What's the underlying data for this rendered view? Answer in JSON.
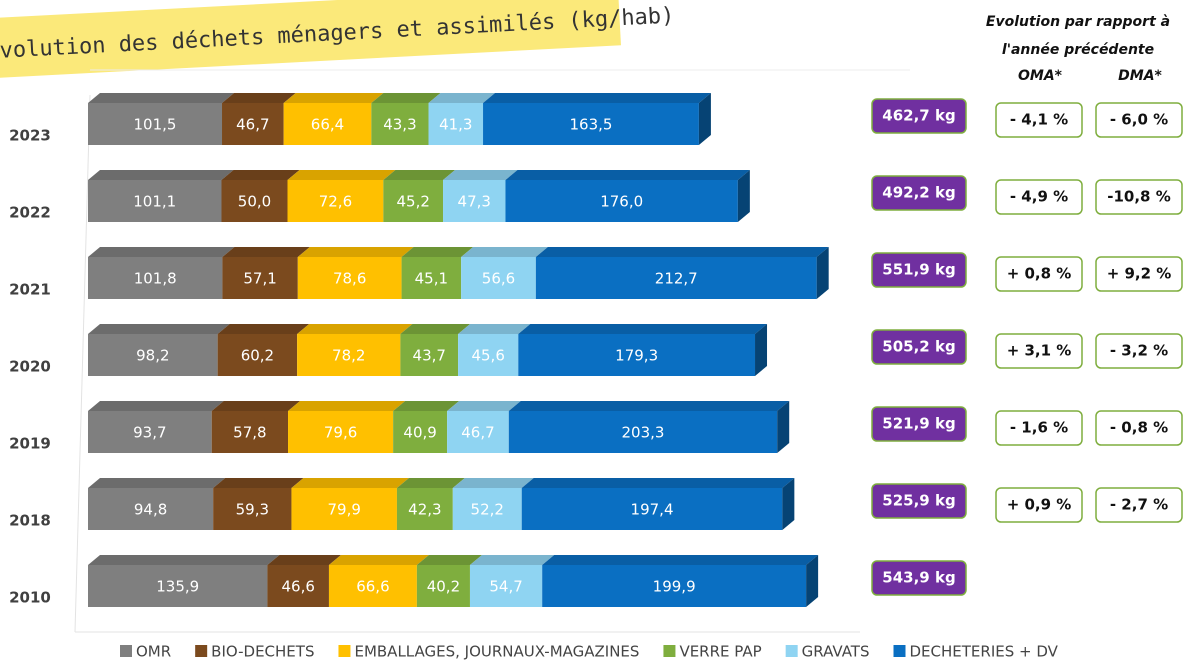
{
  "chart_data": {
    "type": "stacked-bar-3d",
    "title": "Evolution des déchets ménagers et assimilés (kg/hab)",
    "categories": [
      "2023",
      "2022",
      "2021",
      "2020",
      "2019",
      "2018",
      "2010"
    ],
    "xlim": [
      0,
      640
    ],
    "series": [
      {
        "name": "OMR",
        "color": "#7f7f7f",
        "values": [
          101.5,
          101.1,
          101.8,
          98.2,
          93.7,
          94.8,
          135.9
        ],
        "value_labels": [
          "101,5",
          "101,1",
          "101,8",
          "98,2",
          "93,7",
          "94,8",
          "135,9"
        ]
      },
      {
        "name": "BIO-DECHETS",
        "color": "#7b4a1e",
        "values": [
          46.7,
          50.0,
          57.1,
          60.2,
          57.8,
          59.3,
          46.6
        ],
        "value_labels": [
          "46,7",
          "50,0",
          "57,1",
          "60,2",
          "57,8",
          "59,3",
          "46,6"
        ]
      },
      {
        "name": "EMBALLAGES, JOURNAUX-MAGAZINES",
        "color": "#ffc000",
        "values": [
          66.4,
          72.6,
          78.6,
          78.2,
          79.6,
          79.9,
          66.6
        ],
        "value_labels": [
          "66,4",
          "72,6",
          "78,6",
          "78,2",
          "79,6",
          "79,9",
          "66,6"
        ]
      },
      {
        "name": "VERRE PAP",
        "color": "#7fae3e",
        "values": [
          43.3,
          45.2,
          45.1,
          43.7,
          40.9,
          42.3,
          40.2
        ],
        "value_labels": [
          "43,3",
          "45,2",
          "45,1",
          "43,7",
          "40,9",
          "42,3",
          "40,2"
        ]
      },
      {
        "name": "GRAVATS",
        "color": "#8fd4f2",
        "values": [
          41.3,
          47.3,
          56.6,
          45.6,
          46.7,
          52.2,
          54.7
        ],
        "value_labels": [
          "41,3",
          "47,3",
          "56,6",
          "45,6",
          "46,7",
          "52,2",
          "54,7"
        ]
      },
      {
        "name": "DECHETERIES + DV",
        "color": "#0a6fc2",
        "values": [
          163.5,
          176.0,
          212.7,
          179.3,
          203.3,
          197.4,
          199.9
        ],
        "value_labels": [
          "163,5",
          "176,0",
          "212,7",
          "179,3",
          "203,3",
          "197,4",
          "199,9"
        ]
      }
    ],
    "totals": [
      462.7,
      492.2,
      551.9,
      505.2,
      521.9,
      525.9,
      543.9
    ],
    "total_labels": [
      "462,7 kg",
      "492,2 kg",
      "551,9 kg",
      "505,2 kg",
      "521,9 kg",
      "525,9 kg",
      "543,9 kg"
    ],
    "total_color": "#7030a0",
    "evolution": {
      "heading": [
        "Evolution par rapport à",
        "l'année précédente"
      ],
      "columns": [
        "OMA*",
        "DMA*"
      ],
      "oma": [
        -4.1,
        -4.9,
        0.8,
        3.1,
        -1.6,
        0.9
      ],
      "oma_labels": [
        "- 4,1 %",
        "- 4,9 %",
        "+ 0,8 %",
        "+ 3,1 %",
        "- 1,6 %",
        "+ 0,9 %"
      ],
      "dma": [
        -6.0,
        -10.8,
        9.2,
        -3.2,
        -0.8,
        -2.7
      ],
      "dma_labels": [
        "- 6,0 %",
        "-10,8 %",
        "+ 9,2 %",
        "- 3,2 %",
        "- 0,8 %",
        "- 2,7 %"
      ]
    }
  }
}
